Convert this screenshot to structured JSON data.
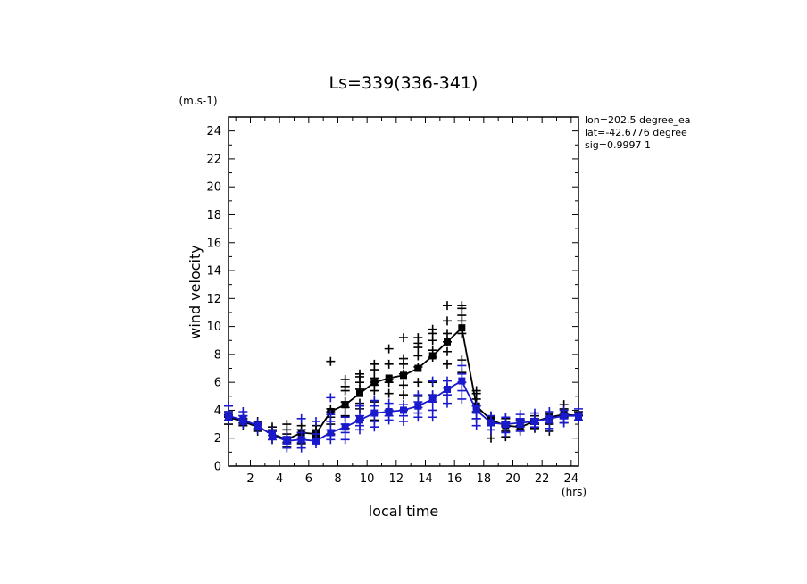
{
  "chart_data": {
    "type": "scatter",
    "title": "Ls=339(336-341)",
    "xlabel": "local time",
    "ylabel": "wind velocity",
    "x_unit": "(hrs)",
    "y_unit": "(m.s-1)",
    "xlim": [
      0.5,
      24.5
    ],
    "ylim": [
      0,
      25
    ],
    "xticks": [
      2,
      4,
      6,
      8,
      10,
      12,
      14,
      16,
      18,
      20,
      22,
      24
    ],
    "yticks": [
      0,
      2,
      4,
      6,
      8,
      10,
      12,
      14,
      16,
      18,
      20,
      22,
      24
    ],
    "grid": false,
    "annotations": [
      "lon=202.5 degree_ea",
      "lat=-42.6776 degree",
      "sig=0.9997 1"
    ],
    "series": [
      {
        "color": "#000000",
        "marker": "plus",
        "hours": [
          0.5,
          1.5,
          2.5,
          3.5,
          4.5,
          5.5,
          6.5,
          7.5,
          8.5,
          9.5,
          10.5,
          11.5,
          12.5,
          13.5,
          14.5,
          15.5,
          16.5,
          17.5,
          18.5,
          19.5,
          20.5,
          21.5,
          22.5,
          23.5,
          24.5
        ],
        "mean": [
          3.5,
          3.2,
          2.8,
          2.3,
          1.9,
          2.4,
          2.3,
          3.9,
          4.4,
          5.2,
          6.0,
          6.3,
          6.5,
          7.0,
          7.9,
          8.9,
          9.9,
          4.3,
          3.3,
          2.9,
          2.8,
          3.2,
          3.5,
          3.7,
          3.6
        ],
        "points": [
          [
            0.5,
            [
              3.0,
              3.3,
              3.5,
              3.7,
              3.9
            ]
          ],
          [
            1.5,
            [
              2.9,
              3.1,
              3.4,
              3.6
            ]
          ],
          [
            2.5,
            [
              2.5,
              2.7,
              3.0,
              3.2
            ]
          ],
          [
            3.5,
            [
              1.9,
              2.2,
              2.5,
              2.8,
              2.6
            ]
          ],
          [
            4.5,
            [
              1.4,
              1.7,
              2.0,
              2.3,
              2.6,
              3.0
            ]
          ],
          [
            5.5,
            [
              1.6,
              2.0,
              2.4,
              2.9,
              2.6
            ]
          ],
          [
            6.5,
            [
              1.8,
              2.0,
              2.3,
              2.6,
              2.9
            ]
          ],
          [
            7.5,
            [
              2.3,
              3.0,
              3.5,
              3.9,
              4.1,
              7.5
            ]
          ],
          [
            8.5,
            [
              2.7,
              3.6,
              4.2,
              4.6,
              5.4,
              5.7,
              6.2
            ]
          ],
          [
            9.5,
            [
              3.3,
              4.1,
              4.5,
              5.5,
              6.0,
              6.4,
              6.6
            ]
          ],
          [
            10.5,
            [
              3.3,
              4.6,
              5.4,
              5.8,
              6.0,
              6.3,
              6.9,
              7.3
            ]
          ],
          [
            11.5,
            [
              4.0,
              5.2,
              6.0,
              6.2,
              7.3,
              8.4
            ]
          ],
          [
            12.5,
            [
              4.0,
              5.1,
              5.8,
              6.6,
              7.3,
              7.7,
              9.2
            ]
          ],
          [
            13.5,
            [
              4.2,
              5.0,
              6.0,
              7.1,
              7.9,
              8.5,
              8.8,
              9.2
            ]
          ],
          [
            14.5,
            [
              5.1,
              6.0,
              7.8,
              8.3,
              9.0,
              9.5,
              9.8
            ]
          ],
          [
            15.5,
            [
              5.6,
              7.3,
              8.2,
              8.9,
              9.5,
              10.4,
              11.5
            ]
          ],
          [
            16.5,
            [
              6.7,
              7.6,
              9.5,
              10.4,
              10.8,
              11.3,
              11.5
            ]
          ],
          [
            17.5,
            [
              3.4,
              3.9,
              4.3,
              4.8,
              5.2,
              5.4
            ]
          ],
          [
            18.5,
            [
              2.0,
              2.6,
              2.9,
              3.3,
              3.6
            ]
          ],
          [
            19.5,
            [
              2.1,
              2.5,
              2.9,
              3.2,
              3.4
            ]
          ],
          [
            20.5,
            [
              2.6,
              2.9,
              3.1,
              3.3
            ]
          ],
          [
            21.5,
            [
              2.7,
              3.0,
              3.3,
              3.6
            ]
          ],
          [
            22.5,
            [
              2.5,
              3.0,
              3.4,
              3.8
            ]
          ],
          [
            23.5,
            [
              3.1,
              3.5,
              3.8,
              4.1,
              4.4
            ]
          ],
          [
            24.5,
            [
              3.3,
              3.6,
              3.9
            ]
          ]
        ]
      },
      {
        "color": "#1a1acc",
        "marker": "plus",
        "hours": [
          0.5,
          1.5,
          2.5,
          3.5,
          4.5,
          5.5,
          6.5,
          7.5,
          8.5,
          9.5,
          10.5,
          11.5,
          12.5,
          13.5,
          14.5,
          15.5,
          16.5,
          17.5,
          18.5,
          19.5,
          20.5,
          21.5,
          22.5,
          23.5,
          24.5
        ],
        "mean": [
          3.6,
          3.3,
          2.9,
          2.2,
          1.8,
          1.9,
          1.8,
          2.4,
          2.8,
          3.3,
          3.8,
          3.9,
          4.0,
          4.3,
          4.8,
          5.5,
          6.1,
          4.0,
          3.1,
          3.0,
          3.1,
          3.2,
          3.4,
          3.6,
          3.6
        ],
        "points": [
          [
            0.5,
            [
              3.3,
              3.6,
              3.9,
              4.3
            ]
          ],
          [
            1.5,
            [
              3.0,
              3.3,
              3.6,
              3.9
            ]
          ],
          [
            2.5,
            [
              2.6,
              2.9,
              3.1
            ]
          ],
          [
            3.5,
            [
              1.9,
              2.2,
              2.5
            ]
          ],
          [
            4.5,
            [
              1.3,
              1.6,
              1.9,
              2.1
            ]
          ],
          [
            5.5,
            [
              1.3,
              1.7,
              2.0,
              2.4,
              3.4
            ]
          ],
          [
            6.5,
            [
              1.6,
              1.9,
              2.3,
              3.2
            ]
          ],
          [
            7.5,
            [
              1.9,
              2.2,
              2.6,
              3.2,
              3.7,
              4.9
            ]
          ],
          [
            8.5,
            [
              1.9,
              2.4,
              3.0,
              3.5
            ]
          ],
          [
            9.5,
            [
              2.6,
              2.9,
              3.3,
              3.6,
              4.3
            ]
          ],
          [
            10.5,
            [
              2.8,
              3.2,
              3.8,
              4.3,
              4.7
            ]
          ],
          [
            11.5,
            [
              3.3,
              3.6,
              4.0,
              4.5
            ]
          ],
          [
            12.5,
            [
              3.2,
              3.6,
              4.0,
              4.4
            ]
          ],
          [
            13.5,
            [
              3.5,
              3.8,
              4.2,
              4.6,
              5.1
            ]
          ],
          [
            14.5,
            [
              3.5,
              4.0,
              4.6,
              5.1,
              6.1
            ]
          ],
          [
            15.5,
            [
              4.5,
              5.1,
              5.6,
              6.1
            ]
          ],
          [
            16.5,
            [
              4.8,
              5.4,
              6.0,
              6.6,
              7.2
            ]
          ],
          [
            17.5,
            [
              2.9,
              3.4,
              3.8,
              4.3
            ]
          ],
          [
            18.5,
            [
              2.6,
              3.0,
              3.3,
              3.6
            ]
          ],
          [
            19.5,
            [
              2.4,
              2.8,
              3.1,
              3.5
            ]
          ],
          [
            20.5,
            [
              2.5,
              2.8,
              3.1,
              3.4,
              3.7
            ]
          ],
          [
            21.5,
            [
              2.8,
              3.1,
              3.4,
              3.8
            ]
          ],
          [
            22.5,
            [
              2.7,
              3.1,
              3.5,
              3.9
            ]
          ],
          [
            23.5,
            [
              3.1,
              3.4,
              3.7,
              4.0
            ]
          ],
          [
            24.5,
            [
              3.3,
              3.7,
              4.1
            ]
          ]
        ]
      }
    ]
  }
}
